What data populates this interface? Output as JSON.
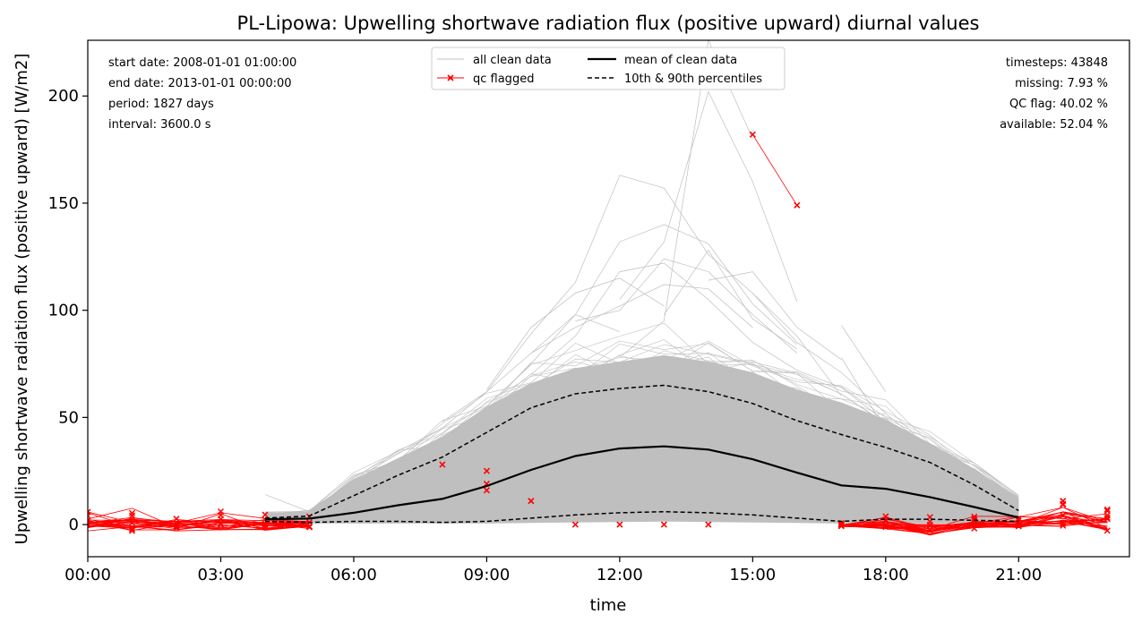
{
  "chart_data": {
    "type": "line",
    "title": "PL-Lipowa: Upwelling shortwave radiation flux (positive upward) diurnal values",
    "xlabel": "time",
    "ylabel": "Upwelling shortwave radiation flux (positive upward) [W/m2]",
    "xlim": [
      0,
      23.5
    ],
    "ylim": [
      -15,
      226
    ],
    "x_ticks": [
      {
        "x": 0,
        "label": "00:00"
      },
      {
        "x": 3,
        "label": "03:00"
      },
      {
        "x": 6,
        "label": "06:00"
      },
      {
        "x": 9,
        "label": "09:00"
      },
      {
        "x": 12,
        "label": "12:00"
      },
      {
        "x": 15,
        "label": "15:00"
      },
      {
        "x": 18,
        "label": "18:00"
      },
      {
        "x": 21,
        "label": "21:00"
      }
    ],
    "y_ticks": [
      0,
      50,
      100,
      150,
      200
    ],
    "grid": false,
    "legend_position": "top-center",
    "legend": [
      {
        "label": "all clean data",
        "key": "clean"
      },
      {
        "label": "qc flagged",
        "key": "flagged"
      },
      {
        "label": "mean of clean data",
        "key": "mean"
      },
      {
        "label": "10th & 90th percentiles",
        "key": "percentiles"
      }
    ],
    "info_left": [
      "start date: 2008-01-01 01:00:00",
      "end date: 2013-01-01 00:00:00",
      "period: 1827 days",
      "interval: 3600.0 s"
    ],
    "info_right": [
      "timesteps: 43848",
      "missing: 7.93 %",
      "QC flag: 40.02 %",
      "available: 52.04 %"
    ],
    "colors": {
      "clean": "#bfbfbf",
      "flagged": "#ff0000",
      "mean": "#000000",
      "percentiles": "#000000"
    },
    "series": [
      {
        "name": "mean of clean data",
        "key": "mean",
        "x": [
          4,
          5,
          6,
          7,
          8,
          9,
          10,
          11,
          12,
          13,
          14,
          15,
          16,
          17,
          18,
          19,
          20,
          21
        ],
        "values": [
          2.5,
          2.8,
          5.5,
          9.0,
          12.0,
          18.0,
          25.5,
          32.0,
          35.5,
          36.5,
          35.0,
          30.5,
          24.2,
          18.3,
          16.7,
          12.8,
          8.2,
          3.3
        ]
      },
      {
        "name": "10th & 90th percentiles",
        "key": "p90",
        "x": [
          4,
          5,
          6,
          7,
          8,
          9,
          10,
          11,
          12,
          13,
          14,
          15,
          16,
          17,
          18,
          19,
          20,
          21
        ],
        "values": [
          3.0,
          4.0,
          13.5,
          23.0,
          31.5,
          43.0,
          54.5,
          61.0,
          63.5,
          65.0,
          62.0,
          56.5,
          48.5,
          42.0,
          36.0,
          29.0,
          18.5,
          6.5
        ]
      },
      {
        "name": "10th & 90th percentiles",
        "key": "p10",
        "x": [
          4,
          5,
          6,
          7,
          8,
          9,
          10,
          11,
          12,
          13,
          14,
          15,
          16,
          17,
          18,
          19,
          20,
          21
        ],
        "values": [
          1.5,
          1.0,
          1.5,
          1.5,
          1.0,
          1.5,
          3.0,
          4.5,
          5.5,
          6.0,
          5.5,
          4.5,
          3.0,
          1.5,
          2.5,
          2.5,
          2.0,
          1.5
        ]
      }
    ],
    "clean_envelope": {
      "x": [
        4,
        5,
        6,
        7,
        8,
        9,
        10,
        11,
        12,
        13,
        14,
        15,
        16,
        17,
        18,
        19,
        20,
        21
      ],
      "upper": [
        5,
        6,
        21,
        31,
        41,
        55,
        66,
        73,
        76,
        79,
        76,
        71,
        63,
        57,
        49,
        38,
        26,
        12
      ],
      "lower": [
        0.5,
        0.5,
        0.5,
        0.5,
        0.5,
        0.5,
        0.8,
        1.0,
        1.2,
        1.4,
        1.2,
        1.0,
        0.8,
        0.5,
        0.5,
        0.5,
        0.5,
        0.5
      ]
    },
    "clean_outlier_lines": [
      {
        "x": [
          4,
          5,
          6,
          7,
          8,
          9,
          10,
          11,
          12,
          13,
          14,
          15,
          16,
          17
        ],
        "values": [
          14,
          6,
          21,
          33,
          45,
          62,
          89,
          113,
          163,
          157,
          126,
          108,
          88,
          60
        ]
      },
      {
        "x": [
          9,
          10,
          11,
          12,
          13,
          14,
          15,
          16
        ],
        "values": [
          55,
          75,
          98,
          132,
          140,
          131,
          103,
          84
        ]
      },
      {
        "x": [
          10,
          11,
          12,
          13,
          14,
          15,
          16,
          17,
          18
        ],
        "values": [
          70,
          88,
          118,
          122,
          105,
          85,
          72,
          64,
          48
        ]
      },
      {
        "x": [
          11,
          12,
          13,
          14,
          15,
          16
        ],
        "values": [
          95,
          100,
          124,
          118,
          98,
          80
        ]
      },
      {
        "x": [
          12,
          13,
          14,
          15,
          16
        ],
        "values": [
          105,
          132,
          202,
          160,
          104
        ]
      },
      {
        "x": [
          12,
          13,
          14,
          15
        ],
        "values": [
          78,
          95,
          226,
          180
        ]
      },
      {
        "x": [
          13,
          14,
          15,
          16
        ],
        "values": [
          98,
          128,
          96,
          82
        ]
      },
      {
        "x": [
          14,
          15,
          16,
          17
        ],
        "values": [
          114,
          118,
          92,
          77
        ]
      },
      {
        "x": [
          15,
          16,
          17,
          18
        ],
        "values": [
          108,
          85,
          71,
          52
        ]
      },
      {
        "x": [
          17,
          18
        ],
        "values": [
          93,
          62
        ]
      },
      {
        "x": [
          17,
          18
        ],
        "values": [
          78,
          44
        ]
      },
      {
        "x": [
          9,
          10,
          11,
          12,
          13
        ],
        "values": [
          63,
          92,
          108,
          115,
          102
        ]
      },
      {
        "x": [
          10,
          11,
          12,
          13,
          14,
          15
        ],
        "values": [
          80,
          92,
          102,
          112,
          110,
          92
        ]
      },
      {
        "x": [
          8,
          9,
          10,
          11,
          12
        ],
        "values": [
          48,
          62,
          80,
          98,
          90
        ]
      }
    ],
    "qc_flagged_points": {
      "x": [
        8,
        9,
        9,
        9,
        10,
        11,
        12,
        13,
        14,
        15,
        16,
        22,
        23
      ],
      "values": [
        28,
        25,
        19,
        16,
        11,
        0,
        0,
        0,
        0,
        182,
        149,
        11,
        7
      ]
    },
    "qc_flagged_lines": [
      {
        "x": [
          15,
          16
        ],
        "values": [
          182,
          149
        ]
      }
    ],
    "qc_flagged_band": {
      "x_before": [
        0,
        1,
        2,
        3,
        4,
        5
      ],
      "x_after": [
        17,
        18,
        19,
        20,
        21,
        22,
        23
      ],
      "max": [
        6,
        8,
        6,
        6.5,
        5,
        5
      ],
      "min": [
        -3,
        -3,
        -3,
        -2.5,
        -3,
        -2
      ],
      "max_after": [
        1,
        4,
        4,
        4,
        4.5,
        11,
        7
      ],
      "min_after": [
        -1,
        -2,
        -5,
        -2,
        -1.5,
        -1,
        -3
      ]
    }
  }
}
